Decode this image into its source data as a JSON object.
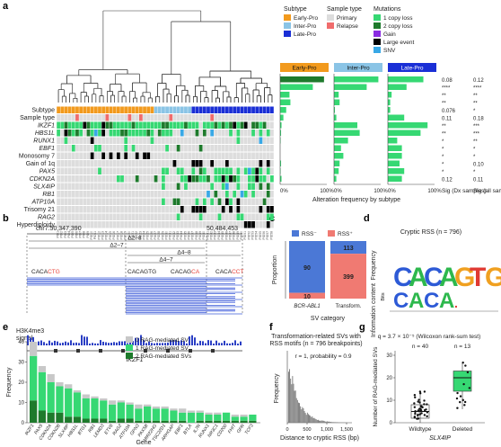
{
  "figure": {
    "panel_labels": [
      "a",
      "b",
      "c",
      "d",
      "e",
      "f",
      "g"
    ]
  },
  "panel_a": {
    "rows": [
      "Subtype",
      "Sample type",
      "IKZF1",
      "HBS1L",
      "RUNX1",
      "EBF1",
      "Monosomy 7",
      "Gain of 1q",
      "PAX5",
      "CDKN2A",
      "SLX4IP",
      "RB1",
      "ATP10A",
      "Trisomy 21",
      "RAG2",
      "Hyperdiploidy"
    ],
    "italic_rows": [
      2,
      3,
      4,
      5,
      8,
      9,
      10,
      11,
      12,
      14
    ],
    "legend": {
      "subtype_title": "Subtype",
      "subtype_items": [
        {
          "label": "Early-Pro",
          "color": "#f29a1d"
        },
        {
          "label": "Inter-Pro",
          "color": "#8ac4e6"
        },
        {
          "label": "Late-Pro",
          "color": "#1a2fd6"
        }
      ],
      "sample_title": "Sample type",
      "sample_items": [
        {
          "label": "Primary",
          "color": "#dddddd"
        },
        {
          "label": "Relapse",
          "color": "#f06c6c"
        }
      ],
      "mut_title": "Mutations",
      "mut_items": [
        {
          "label": "1 copy loss",
          "color": "#36d873"
        },
        {
          "label": "2 copy loss",
          "color": "#1e7a2c"
        },
        {
          "label": "Gain",
          "color": "#8a2be2"
        },
        {
          "label": "Large event",
          "color": "#000000"
        },
        {
          "label": "SNV",
          "color": "#38a8e6"
        }
      ]
    },
    "bar_headers": [
      "Early-Pro",
      "Inter-Pro",
      "Late-Pro"
    ],
    "bar_header_colors": [
      "#f29a1d",
      "#8ac4e6",
      "#1a2fd6"
    ],
    "axis_ticks": [
      "0%",
      "100%",
      "0%",
      "100%",
      "0%",
      "100%"
    ],
    "xlabel": "Alteration frequency by subtype",
    "sig_header_1": "Sig (Dx samples)",
    "sig_header_2": "Sig (all samples)",
    "sig_dx": [
      "0.08",
      "****",
      "**",
      "**",
      "0.076",
      "0.11",
      "**",
      "**",
      "*",
      "*",
      "*",
      "*",
      "*",
      "0.12"
    ],
    "sig_all": [
      "0.12",
      "****",
      "**",
      "**",
      "*",
      "0.18",
      "***",
      "***",
      "**",
      "*",
      "*",
      "0.10",
      "*",
      "0.11"
    ],
    "freq_early": [
      0.94,
      0.7,
      0.2,
      0.22,
      0.13,
      0.07,
      0.03,
      0.02,
      0.01,
      0,
      0,
      0.02,
      0.01,
      0.03
    ],
    "freq_inter": [
      0.95,
      0.7,
      0.1,
      0.12,
      0.02,
      0.05,
      0.5,
      0.55,
      0.3,
      0.15,
      0.2,
      0.12,
      0.1,
      0.05
    ],
    "freq_late": [
      0.76,
      0.4,
      0.08,
      0.05,
      0.05,
      0.35,
      0.85,
      0.7,
      0.2,
      0.3,
      0.3,
      0.25,
      0.35,
      0.3
    ]
  },
  "panel_b": {
    "coord_left": "chr7:50,347,390",
    "coord_right": "50,484,453",
    "deletions": [
      "Δ2–8",
      "Δ2–7",
      "Δ4–8",
      "Δ4–7"
    ],
    "motifs": [
      {
        "prefix": "CACA",
        "highlight": "CTG",
        "hcolor": "#e8433a"
      },
      {
        "prefix": "CACAGTG",
        "highlight": "",
        "hcolor": "#e8433a"
      },
      {
        "prefix": "CACAG",
        "highlight": "CA",
        "hcolor": "#e8433a"
      },
      {
        "prefix": "CACA",
        "highlight": "CCT",
        "hcolor": "#e8433a"
      }
    ],
    "track_label": "H3K4me3 signal",
    "gene": "IKZF1"
  },
  "panel_c": {
    "legend": [
      {
        "label": "RSS⁻",
        "color": "#4b78d6"
      },
      {
        "label": "RSS⁺",
        "color": "#f07a72"
      }
    ],
    "categories": [
      "BCR-ABL1",
      "Transform."
    ],
    "ylabel": "Proportion",
    "xlabel": "SV category",
    "chart_data": {
      "type": "bar",
      "categories": [
        "BCR-ABL1",
        "Transform."
      ],
      "series": [
        {
          "name": "RSS⁻",
          "values": [
            90,
            113
          ]
        },
        {
          "name": "RSS⁺",
          "values": [
            10,
            399
          ]
        }
      ],
      "ylabel": "Proportion",
      "xlabel": "SV category"
    },
    "labels": [
      "90",
      "10",
      "113",
      "399"
    ]
  },
  "panel_d": {
    "title": "Cryptic RSS (n = 796)",
    "ylabel_top": "Frequency",
    "ylabel_bottom": "Information content",
    "bits": "Bits",
    "logo_top": [
      "C",
      "A",
      "C",
      "A",
      "G",
      "T",
      "G"
    ],
    "logo_bottom": [
      "C",
      "A",
      "C",
      "A",
      "."
    ]
  },
  "panel_e": {
    "legend": [
      "0 RAG-mediated SV",
      "1 RAG-mediated SV",
      "2 RAG-mediated SVs"
    ],
    "legend_colors": [
      "#c8c8c8",
      "#36d873",
      "#1e7a2c"
    ],
    "ylabel": "Frequency",
    "xlabel": "Gene",
    "yticks": [
      "0",
      "10",
      "20",
      "30",
      "40"
    ],
    "chart_data": {
      "type": "bar",
      "categories": [
        "IKZF1",
        "PAX5",
        "CDKN2A",
        "CDKN2B",
        "SLX4IP",
        "HBS1L",
        "BTG1",
        "RB1",
        "LEMD3",
        "ETV6",
        "RAG2",
        "ATP10A",
        "GPN3",
        "PAX5B",
        "MIR22HG",
        "TSC22D1",
        "ARHGAP",
        "EBF1",
        "BTLA",
        "IL7R",
        "RUNX1",
        "NR3C1",
        "CD200",
        "FHIT",
        "GPR",
        "TCF3"
      ],
      "series": [
        {
          "name": "0 RAG-mediated SV",
          "values": [
            7,
            3,
            4,
            2,
            2,
            1,
            2,
            1,
            1,
            2,
            1,
            1,
            2,
            1,
            1,
            1,
            1,
            2,
            1,
            1,
            1,
            1,
            0,
            1,
            1,
            0
          ]
        },
        {
          "name": "1 RAG-mediated SV",
          "values": [
            22,
            19,
            15,
            13,
            14,
            12,
            10,
            10,
            9,
            8,
            8,
            7,
            6,
            7,
            6,
            6,
            5,
            4,
            5,
            4,
            3,
            3,
            4,
            2,
            2,
            3
          ]
        },
        {
          "name": "2 RAG-mediated SVs",
          "values": [
            11,
            6,
            5,
            5,
            3,
            3,
            2,
            2,
            2,
            1,
            2,
            2,
            1,
            1,
            1,
            1,
            1,
            1,
            0,
            1,
            1,
            1,
            1,
            1,
            1,
            1
          ]
        }
      ],
      "ylim": [
        0,
        40
      ]
    }
  },
  "panel_f": {
    "title_1": "Transformation-related SVs with",
    "title_2": "RSS motifs (n = 796 breakpoints)",
    "annotation": "r = 1, probability = 0.9",
    "ylabel": "Frequency",
    "xlabel": "Distance to cryptic RSS (bp)",
    "xticks": [
      "0",
      "500",
      "1,000",
      "1,500"
    ]
  },
  "panel_g": {
    "stat": "q = 3.7 × 10⁻⁵ (Wilcoxon rank-sum test)",
    "n_labels": [
      "n = 40",
      "n = 13"
    ],
    "categories": [
      "Wildtype",
      "Deleted"
    ],
    "ylabel": "Number of RAG-mediated SVs",
    "xlabel": "SLX4IP",
    "yticks": [
      "0",
      "10",
      "20",
      "30"
    ],
    "chart_data": {
      "type": "box",
      "categories": [
        "Wildtype",
        "Deleted"
      ],
      "box": [
        {
          "q1": 2,
          "median": 5,
          "q3": 8,
          "whisker_low": 0,
          "whisker_high": 14
        },
        {
          "q1": 14,
          "median": 20,
          "q3": 23,
          "whisker_low": 6,
          "whisker_high": 27
        }
      ],
      "ylim": [
        0,
        32
      ]
    }
  }
}
